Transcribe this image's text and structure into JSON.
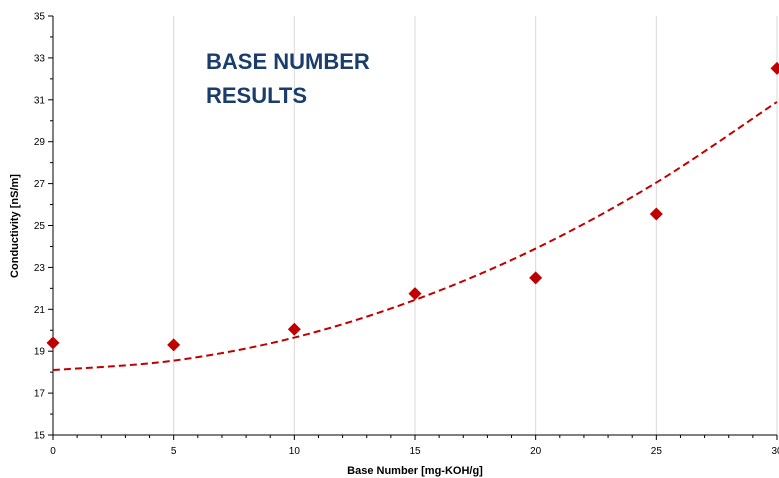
{
  "chart_data": {
    "type": "scatter",
    "title_lines": [
      "BASE NUMBER",
      "RESULTS"
    ],
    "xlabel": "Base Number [mg-KOH/g]",
    "ylabel": "Conductivity [nS/m]",
    "xlim": [
      0,
      30
    ],
    "ylim": [
      15,
      35
    ],
    "x_ticks": [
      0,
      5,
      10,
      15,
      20,
      25,
      30
    ],
    "y_ticks": [
      15,
      17,
      19,
      21,
      23,
      25,
      27,
      29,
      31,
      33,
      35
    ],
    "grid": "vertical",
    "series": [
      {
        "marker": "diamond",
        "color": "#c00000",
        "x": [
          0,
          5,
          10,
          15,
          20,
          25,
          30
        ],
        "y": [
          19.4,
          19.3,
          20.05,
          21.75,
          22.5,
          25.55,
          32.5
        ]
      }
    ],
    "trendline": {
      "type": "polynomial",
      "style": "dashed",
      "color": "#c00000",
      "x": [
        0,
        5,
        10,
        15,
        20,
        25,
        30
      ],
      "y": [
        18.1,
        18.55,
        19.65,
        21.45,
        23.9,
        27.05,
        30.9
      ]
    }
  }
}
